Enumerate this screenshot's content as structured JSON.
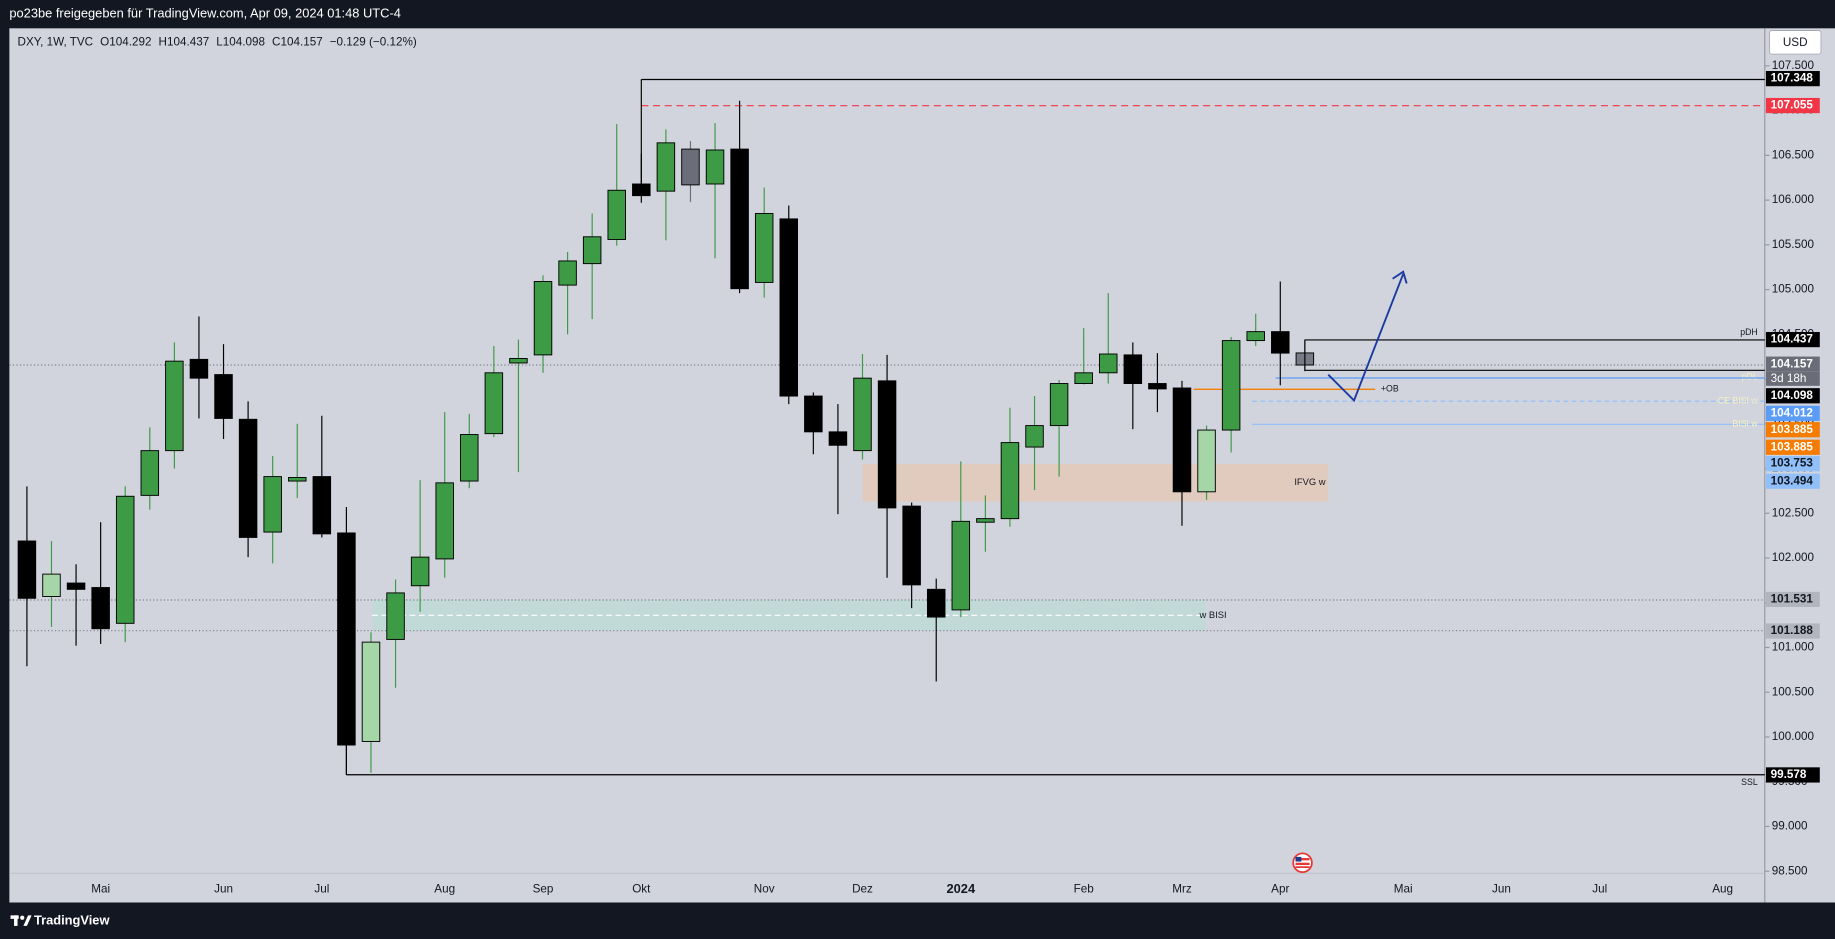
{
  "header": {
    "title": "po23be freigegeben für TradingView.com, Apr 09, 2024 01:48 UTC-4"
  },
  "chart_data": {
    "type": "candlestick",
    "symbol": "DXY, 1W, TVC",
    "legend_values": [
      "O104.292",
      "H104.437",
      "L104.098",
      "C104.157",
      "−0.129 (−0.12%)"
    ],
    "currency": "USD",
    "categories": [
      null,
      null,
      null,
      "Mai",
      null,
      null,
      null,
      null,
      "Jun",
      null,
      null,
      null,
      "Jul",
      null,
      null,
      null,
      null,
      "Aug",
      null,
      null,
      null,
      "Sep",
      null,
      null,
      null,
      "Okt",
      null,
      null,
      null,
      null,
      "Nov",
      null,
      null,
      null,
      "Dez",
      null,
      null,
      null,
      "2024",
      null,
      null,
      null,
      null,
      "Feb",
      null,
      null,
      null,
      "Mrz",
      null,
      null,
      null,
      "Apr",
      null,
      null,
      null,
      null,
      "Mai",
      null,
      null,
      null,
      "Jun",
      null,
      null,
      null,
      "Jul",
      null,
      null,
      null,
      null,
      "Aug",
      null
    ],
    "open": [
      102.19,
      101.57,
      101.72,
      101.67,
      101.27,
      102.7,
      103.2,
      104.22,
      104.05,
      103.55,
      102.29,
      102.86,
      102.91,
      102.28,
      99.95,
      101.09,
      101.69,
      101.99,
      102.86,
      103.39,
      104.18,
      104.27,
      105.05,
      105.29,
      105.56,
      106.18,
      106.1,
      106.57,
      106.18,
      106.57,
      105.08,
      105.79,
      103.81,
      103.41,
      103.2,
      103.98,
      102.58,
      101.65,
      101.42,
      102.4,
      102.44,
      103.24,
      103.48,
      103.95,
      104.07,
      104.27,
      103.95,
      103.9,
      102.74,
      103.43,
      104.43,
      104.53,
      104.292,
      null,
      null,
      null,
      null,
      null,
      null,
      null,
      null,
      null,
      null,
      null,
      null,
      null,
      null,
      null,
      null,
      null,
      null
    ],
    "high": [
      102.8,
      102.19,
      101.93,
      102.4,
      102.8,
      103.46,
      104.41,
      104.7,
      104.39,
      103.75,
      103.14,
      103.5,
      103.59,
      102.57,
      101.17,
      101.76,
      102.87,
      103.63,
      103.61,
      104.37,
      104.44,
      105.16,
      105.42,
      105.85,
      106.85,
      106.52,
      106.79,
      106.66,
      106.86,
      107.11,
      106.14,
      105.94,
      103.85,
      103.72,
      104.28,
      104.27,
      102.62,
      101.77,
      103.08,
      102.7,
      103.68,
      103.81,
      103.99,
      104.57,
      104.96,
      104.41,
      104.29,
      103.98,
      103.48,
      104.47,
      104.73,
      105.09,
      104.437,
      null,
      null,
      null,
      null,
      null,
      null,
      null,
      null,
      null,
      null,
      null,
      null,
      null,
      null,
      null,
      null,
      null,
      null
    ],
    "low": [
      100.79,
      101.23,
      101.02,
      101.04,
      101.06,
      102.54,
      103.0,
      103.56,
      103.33,
      102.01,
      101.94,
      102.67,
      102.23,
      99.578,
      99.6,
      100.55,
      101.4,
      101.78,
      102.78,
      103.35,
      102.96,
      104.07,
      104.5,
      104.67,
      105.49,
      105.97,
      105.55,
      105.98,
      105.35,
      104.96,
      104.91,
      103.72,
      103.16,
      102.49,
      103.1,
      101.78,
      101.44,
      100.62,
      101.34,
      102.07,
      102.35,
      102.76,
      102.91,
      103.94,
      103.95,
      103.44,
      103.63,
      102.36,
      102.65,
      103.18,
      104.37,
      103.93,
      104.098,
      null,
      null,
      null,
      null,
      null,
      null,
      null,
      null,
      null,
      null,
      null,
      null,
      null,
      null,
      null,
      null,
      null,
      null
    ],
    "close": [
      101.55,
      101.82,
      101.65,
      101.21,
      102.69,
      103.2,
      104.2,
      104.01,
      103.56,
      102.23,
      102.91,
      102.9,
      102.27,
      99.91,
      101.06,
      101.61,
      102.01,
      102.84,
      103.38,
      104.07,
      104.23,
      105.09,
      105.32,
      105.59,
      106.11,
      106.05,
      106.64,
      106.17,
      106.56,
      105.01,
      105.85,
      103.81,
      103.41,
      103.26,
      104.01,
      102.56,
      101.7,
      101.34,
      102.41,
      102.44,
      103.29,
      103.48,
      103.95,
      104.07,
      104.28,
      103.95,
      103.89,
      102.74,
      103.43,
      104.43,
      104.53,
      104.29,
      104.157,
      null,
      null,
      null,
      null,
      null,
      null,
      null,
      null,
      null,
      null,
      null,
      null,
      null,
      null,
      null,
      null,
      null,
      null
    ],
    "colors": [
      "#000000",
      "#a5d6a7",
      "#000000",
      "#000000",
      "#3d9a45",
      "#3d9a45",
      "#3d9a45",
      "#000000",
      "#000000",
      "#000000",
      "#3d9a45",
      "#3d9a45",
      "#000000",
      "#000000",
      "#a5d6a7",
      "#3d9a45",
      "#3d9a45",
      "#3d9a45",
      "#3d9a45",
      "#3d9a45",
      "#3d9a45",
      "#3d9a45",
      "#3d9a45",
      "#3d9a45",
      "#3d9a45",
      "#000000",
      "#3d9a45",
      "#6b6e79",
      "#3d9a45",
      "#000000",
      "#3d9a45",
      "#000000",
      "#000000",
      "#000000",
      "#3d9a45",
      "#000000",
      "#000000",
      "#000000",
      "#3d9a45",
      "#3d9a45",
      "#3d9a45",
      "#3d9a45",
      "#3d9a45",
      "#3d9a45",
      "#3d9a45",
      "#000000",
      "#000000",
      "#000000",
      "#a5d6a7",
      "#3d9a45",
      "#3d9a45",
      "#000000",
      "#787b86",
      null,
      null,
      null,
      null,
      null,
      null,
      null,
      null,
      null,
      null,
      null,
      null,
      null,
      null,
      null,
      null,
      null,
      null
    ],
    "ylim": [
      98.15,
      107.92
    ],
    "yticks": [
      {
        "value": 98.5,
        "label": "98.500"
      },
      {
        "value": 99,
        "label": "99.000"
      },
      {
        "value": 99.5,
        "label": "99.500"
      },
      {
        "value": 100,
        "label": "100.000"
      },
      {
        "value": 100.5,
        "label": "100.500"
      },
      {
        "value": 101,
        "label": "101.000"
      },
      {
        "value": 101.5,
        "label": "101.500"
      },
      {
        "value": 102,
        "label": "102.000"
      },
      {
        "value": 102.5,
        "label": "102.500"
      },
      {
        "value": 103,
        "label": "103.000"
      },
      {
        "value": 103.5,
        "label": "103.500"
      },
      {
        "value": 104,
        "label": "104.000"
      },
      {
        "value": 104.5,
        "label": "104.500"
      },
      {
        "value": 105,
        "label": "105.000"
      },
      {
        "value": 105.5,
        "label": "105.500"
      },
      {
        "value": 106,
        "label": "106.000"
      },
      {
        "value": 106.5,
        "label": "106.500"
      },
      {
        "value": 107,
        "label": "107.000"
      },
      {
        "value": 107.5,
        "label": "107.500"
      }
    ],
    "grid": false,
    "levels": [
      {
        "value": 107.348,
        "color": "#000000",
        "text_color": "#ffffff"
      },
      {
        "value": 107.055,
        "color": "#f23645",
        "text_color": "#ffffff"
      },
      {
        "value": 104.437,
        "color": "#000000",
        "text_color": "#ffffff",
        "note": "pDH"
      },
      {
        "value": 104.157,
        "color": "#6a6d78",
        "text_color": "#ffffff",
        "countdown": "3d 18h"
      },
      {
        "value": 104.098,
        "color": "#000000",
        "text_color": "#ffffff",
        "note": "pDL"
      },
      {
        "value": 104.012,
        "color": "#5b9cf6",
        "text_color": "#ffffff"
      },
      {
        "value": 103.885,
        "color": "#f57c00",
        "text_color": "#ffffff",
        "note": "+OB"
      },
      {
        "value": 103.885,
        "color": "#f57c00",
        "text_color": "#ffffff"
      },
      {
        "value": 103.753,
        "color": "#90bff9",
        "text_color": "#131722",
        "note": "CE BISI w"
      },
      {
        "value": 103.494,
        "color": "#90bff9",
        "text_color": "#131722",
        "note": "BISI w"
      },
      {
        "value": 101.531,
        "color": "#b2b5be",
        "text_color": "#131722"
      },
      {
        "value": 101.188,
        "color": "#b2b5be",
        "text_color": "#131722"
      },
      {
        "value": 99.578,
        "color": "#000000",
        "text_color": "#ffffff",
        "note": "SSL"
      }
    ],
    "zones": [
      {
        "label": "IFVG w",
        "top": 103.05,
        "bottom": 102.63,
        "color": "#e6c8b4"
      },
      {
        "label": "w BISI",
        "top": 101.531,
        "bottom": 101.188,
        "color": "#bcdcd5"
      }
    ]
  },
  "footer": {
    "brand": "TradingView"
  }
}
